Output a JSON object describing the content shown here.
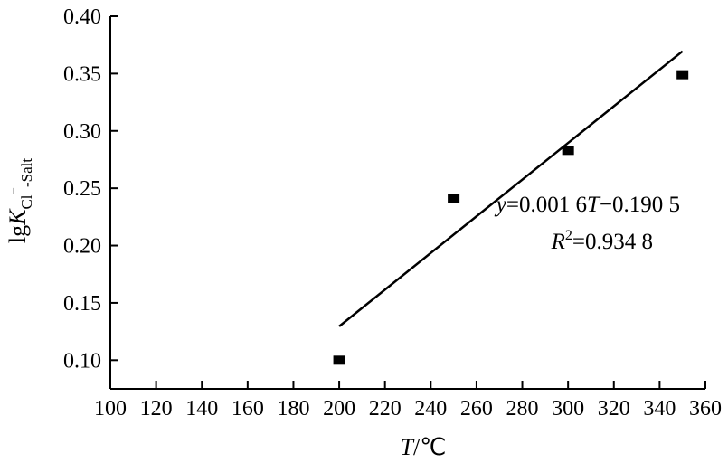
{
  "chart_data": {
    "type": "scatter",
    "title": "",
    "xlabel": {
      "var": "T",
      "unit": "/℃"
    },
    "ylabel": {
      "prefix": "lg",
      "var": "K",
      "sub": "Cl",
      "sup": "−",
      "sub2": "-Salt"
    },
    "xlim": [
      100,
      360
    ],
    "ylim": [
      0.075,
      0.4
    ],
    "xticks": [
      100,
      120,
      140,
      160,
      180,
      200,
      220,
      240,
      260,
      280,
      300,
      320,
      340,
      360
    ],
    "yticks": [
      0.1,
      0.15,
      0.2,
      0.25,
      0.3,
      0.35,
      0.4
    ],
    "xtick_labels": [
      "100",
      "120",
      "140",
      "160",
      "180",
      "200",
      "220",
      "240",
      "260",
      "280",
      "300",
      "320",
      "340",
      "360"
    ],
    "ytick_labels": [
      "0.10",
      "0.15",
      "0.20",
      "0.25",
      "0.30",
      "0.35",
      "0.40"
    ],
    "x": [
      200,
      250,
      300,
      350
    ],
    "y": [
      0.1,
      0.241,
      0.283,
      0.349
    ],
    "fit": {
      "slope": 0.0016,
      "intercept": -0.1905,
      "x_range": [
        200,
        350
      ]
    },
    "annotation": {
      "equation_parts": [
        "y",
        "=0.001 6",
        "T",
        "−0.190 5"
      ],
      "r2_parts": [
        "R",
        "2",
        "=0.934 8"
      ]
    },
    "grid": false,
    "legend": "none"
  }
}
